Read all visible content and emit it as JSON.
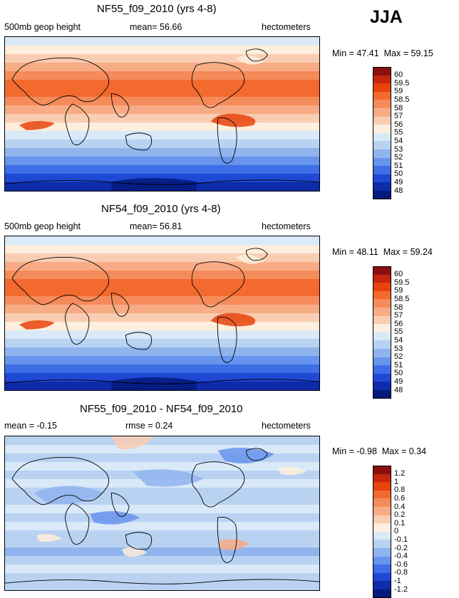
{
  "season_label": "JJA",
  "panels": [
    {
      "title": "NF55_f09_2010 (yrs 4-8)",
      "left_label": "500mb geop height",
      "center_label": "mean=   56.66",
      "units": "hectometers",
      "min_label": "Min =",
      "min_value": "47.41",
      "max_label": "Max =",
      "max_value": "59.15",
      "legend_levels": [
        "60",
        "59.5",
        "59",
        "58.5",
        "58",
        "57",
        "56",
        "55",
        "54",
        "53",
        "52",
        "51",
        "50",
        "49",
        "48"
      ],
      "legend_colors": [
        "#8b0f0f",
        "#c4260e",
        "#e8430c",
        "#f26a2e",
        "#f58b5a",
        "#f7ac85",
        "#f9cdb2",
        "#fdeedd",
        "#d9e9f8",
        "#b9d2f2",
        "#8fb4ee",
        "#6794ec",
        "#3d6ee6",
        "#1f48d4",
        "#0e2ba9",
        "#041a7c"
      ],
      "bands": [
        "#d9e9f8",
        "#fdeedd",
        "#f9cdb2",
        "#f7ac85",
        "#f58b5a",
        "#f26a2e",
        "#f26a2e",
        "#f58b5a",
        "#f7ac85",
        "#f9cdb2",
        "#fdeedd",
        "#d9e9f8",
        "#b9d2f2",
        "#8fb4ee",
        "#6794ec",
        "#3d6ee6",
        "#1f48d4",
        "#0e2ba9"
      ]
    },
    {
      "title": "NF54_f09_2010 (yrs 4-8)",
      "left_label": "500mb geop height",
      "center_label": "mean=   56.81",
      "units": "hectometers",
      "min_label": "Min =",
      "min_value": "48.11",
      "max_label": "Max =",
      "max_value": "59.24",
      "legend_levels": [
        "60",
        "59.5",
        "59",
        "58.5",
        "58",
        "57",
        "56",
        "55",
        "54",
        "53",
        "52",
        "51",
        "50",
        "49",
        "48"
      ],
      "legend_colors": [
        "#8b0f0f",
        "#c4260e",
        "#e8430c",
        "#f26a2e",
        "#f58b5a",
        "#f7ac85",
        "#f9cdb2",
        "#fdeedd",
        "#d9e9f8",
        "#b9d2f2",
        "#8fb4ee",
        "#6794ec",
        "#3d6ee6",
        "#1f48d4",
        "#0e2ba9",
        "#041a7c"
      ],
      "bands": [
        "#d9e9f8",
        "#fdeedd",
        "#f9cdb2",
        "#f7ac85",
        "#f58b5a",
        "#f26a2e",
        "#f26a2e",
        "#f58b5a",
        "#f7ac85",
        "#f9cdb2",
        "#fdeedd",
        "#d9e9f8",
        "#b9d2f2",
        "#8fb4ee",
        "#6794ec",
        "#3d6ee6",
        "#1f48d4",
        "#0e2ba9"
      ]
    },
    {
      "title": "NF55_f09_2010 - NF54_f09_2010",
      "left_label": "mean =   -0.15",
      "center_label": "rmse =    0.24",
      "units": "hectometers",
      "min_label": "Min =",
      "min_value": "-0.98",
      "max_label": "Max =",
      "max_value": "0.34",
      "legend_levels": [
        "1.2",
        "1",
        "0.8",
        "0.6",
        "0.4",
        "0.2",
        "0.1",
        "0",
        "-0.1",
        "-0.2",
        "-0.4",
        "-0.6",
        "-0.8",
        "-1",
        "-1.2"
      ],
      "legend_colors": [
        "#8b0f0f",
        "#c4260e",
        "#e8430c",
        "#f26a2e",
        "#f58b5a",
        "#f7ac85",
        "#f9cdb2",
        "#fdeedd",
        "#d9e9f8",
        "#b9d2f2",
        "#8fb4ee",
        "#6794ec",
        "#3d6ee6",
        "#1f48d4",
        "#0e2ba9",
        "#041a7c"
      ],
      "bands": [
        "#b9d2f2",
        "#d9e9f8",
        "#b9d2f2",
        "#d9e9f8",
        "#b9d2f2",
        "#d9e9f8",
        "#b9d2f2",
        "#b9d2f2",
        "#d9e9f8",
        "#b9d2f2",
        "#d9e9f8",
        "#b9d2f2",
        "#b9d2f2",
        "#8fb4ee",
        "#b9d2f2",
        "#d9e9f8",
        "#b9d2f2",
        "#b9d2f2"
      ]
    }
  ],
  "chart_data": [
    {
      "type": "heatmap",
      "title": "NF55_f09_2010 (yrs 4-8)",
      "field": "500mb geop height",
      "units": "hectometers",
      "mean": 56.66,
      "min": 47.41,
      "max": 59.15,
      "contour_levels": [
        48,
        49,
        50,
        51,
        52,
        53,
        54,
        55,
        56,
        57,
        58,
        58.5,
        59,
        59.5,
        60
      ],
      "season": "JJA"
    },
    {
      "type": "heatmap",
      "title": "NF54_f09_2010 (yrs 4-8)",
      "field": "500mb geop height",
      "units": "hectometers",
      "mean": 56.81,
      "min": 48.11,
      "max": 59.24,
      "contour_levels": [
        48,
        49,
        50,
        51,
        52,
        53,
        54,
        55,
        56,
        57,
        58,
        58.5,
        59,
        59.5,
        60
      ],
      "season": "JJA"
    },
    {
      "type": "heatmap",
      "title": "NF55_f09_2010 - NF54_f09_2010",
      "units": "hectometers",
      "mean": -0.15,
      "rmse": 0.24,
      "min": -0.98,
      "max": 0.34,
      "contour_levels": [
        -1.2,
        -1,
        -0.8,
        -0.6,
        -0.4,
        -0.2,
        -0.1,
        0,
        0.1,
        0.2,
        0.4,
        0.6,
        0.8,
        1,
        1.2
      ],
      "season": "JJA"
    }
  ]
}
